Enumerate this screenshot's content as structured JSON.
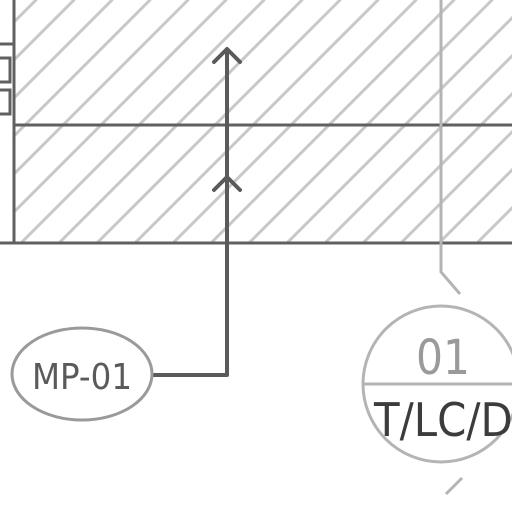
{
  "material_tag": {
    "label": "MP-01"
  },
  "section_marker": {
    "number": "01",
    "sheet_ref": "T/LC/DC"
  },
  "colors": {
    "background": "#ffffff",
    "hatch": "#c8c8c8",
    "outline": "#606060",
    "leader": "#5a5a5a",
    "callout_line": "#b4b4b4",
    "callout_text": "#9a9a9a",
    "sheet_text": "#3c3c3c"
  }
}
